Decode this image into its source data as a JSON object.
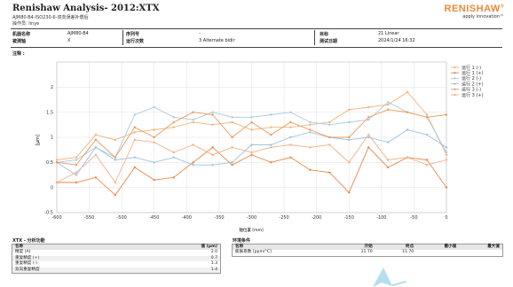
{
  "header": {
    "title": "Renishaw Analysis- 2012:XTX",
    "subtitle1": "AJM80-B4-ISO230-6-双向误差补偿后",
    "subtitle2": "操作员: linye",
    "logo_text": "RENISHAW",
    "logo_reg": "®",
    "logo_tagline": "apply innovation™"
  },
  "info": {
    "machine_label": "机器名称",
    "machine_value": "AJM80-B4",
    "axis_label": "被测轴",
    "axis_value": "X",
    "serial_label": "序列号",
    "serial_value": "-",
    "runs_label": "运行次数",
    "runs_value": "3 Alternate bidir",
    "target_label": "目标",
    "target_value": "21 Linear",
    "date_label": "测试日期",
    "date_value": "2024/1/24 16:32"
  },
  "notes_label": "注释 :",
  "colors": {
    "orange": "#f0a060",
    "lightblue": "#9cc4dc",
    "darkorange": "#e07a3a",
    "grid": "#d8d8d8",
    "header_rule": "#444444"
  },
  "chart_data": {
    "type": "line",
    "xlabel": "轴位置 [mm]",
    "ylabel": "[μm]",
    "xlim": [
      -600,
      0
    ],
    "ylim": [
      -0.5,
      2.5
    ],
    "xticks": [
      "-600",
      "-550",
      "-500",
      "-450",
      "-400",
      "-350",
      "-300",
      "-250",
      "-200",
      "-150",
      "-100",
      "-50",
      "0"
    ],
    "yticks": [
      "-0.5",
      "0",
      "0.5",
      "1",
      "1.5",
      "2"
    ],
    "x": [
      -600,
      -570,
      -540,
      -510,
      -480,
      -450,
      -420,
      -390,
      -360,
      -330,
      -300,
      -270,
      -240,
      -210,
      -180,
      -150,
      -120,
      -90,
      -60,
      -30,
      0
    ],
    "legend_position": "right",
    "series": [
      {
        "name": "运行 1 (-)",
        "color": "#f5b27a",
        "values": [
          0.55,
          0.6,
          1.05,
          0.95,
          1.1,
          1.15,
          1.2,
          1.3,
          1.25,
          1.3,
          1.15,
          1.2,
          1.2,
          1.25,
          1.3,
          1.55,
          1.6,
          1.65,
          1.9,
          1.45,
          0.65
        ]
      },
      {
        "name": "运行 1 (+)",
        "color": "#e8884a",
        "values": [
          0.1,
          0.1,
          0.2,
          -0.15,
          0.4,
          0.15,
          0.2,
          0.5,
          0.8,
          0.45,
          0.65,
          0.5,
          0.6,
          0.35,
          0.3,
          -0.1,
          0.8,
          0.4,
          0.6,
          0.55,
          0.0
        ]
      },
      {
        "name": "运行 2 (-)",
        "color": "#a8cce0",
        "values": [
          0.5,
          0.55,
          0.8,
          0.6,
          1.45,
          1.6,
          1.4,
          1.35,
          1.5,
          1.4,
          1.4,
          1.45,
          1.5,
          1.3,
          1.25,
          1.3,
          1.35,
          1.7,
          1.5,
          1.4,
          0.7
        ]
      },
      {
        "name": "运行 2 (+)",
        "color": "#9cc4dc",
        "values": [
          0.5,
          0.25,
          0.8,
          0.55,
          0.6,
          0.5,
          0.6,
          0.45,
          0.45,
          0.5,
          0.85,
          0.85,
          1.0,
          1.1,
          1.0,
          0.95,
          1.0,
          0.9,
          1.15,
          1.05,
          0.8
        ]
      },
      {
        "name": "运行 3 (-)",
        "color": "#ec9a5c",
        "values": [
          0.5,
          0.45,
          0.95,
          0.6,
          1.2,
          1.0,
          1.3,
          1.5,
          1.45,
          1.0,
          1.3,
          1.05,
          1.3,
          1.15,
          1.0,
          1.0,
          1.4,
          1.55,
          1.5,
          1.4,
          1.45
        ]
      },
      {
        "name": "运行 3 (+)",
        "color": "#f3b088",
        "values": [
          0.1,
          0.3,
          0.65,
          0.1,
          0.95,
          0.9,
          0.7,
          0.85,
          0.65,
          0.8,
          0.7,
          0.8,
          0.85,
          0.8,
          0.85,
          0.5,
          1.05,
          0.55,
          0.6,
          0.45,
          0.55
        ]
      }
    ]
  },
  "analysis": {
    "title": "XTX - 分析功能",
    "col_name": "名称",
    "col_value": "值 (μm)",
    "rows": [
      {
        "name": "精度 (A)",
        "value": "2.0"
      },
      {
        "name": "重复精度 (+)",
        "value": "0.7"
      },
      {
        "name": "重复精度 (-)",
        "value": "1.3"
      },
      {
        "name": "双向重复精度",
        "value": "1.4"
      }
    ]
  },
  "env": {
    "title": "环境条件",
    "col_name": "名称",
    "col_start": "开始",
    "col_end": "终点",
    "col_min": "最小值",
    "col_max": "最大值",
    "rows": [
      {
        "name": "膨胀系数 [ppm/°C]",
        "start": "11.70",
        "end": "11.70",
        "min": "",
        "max": ""
      }
    ]
  }
}
